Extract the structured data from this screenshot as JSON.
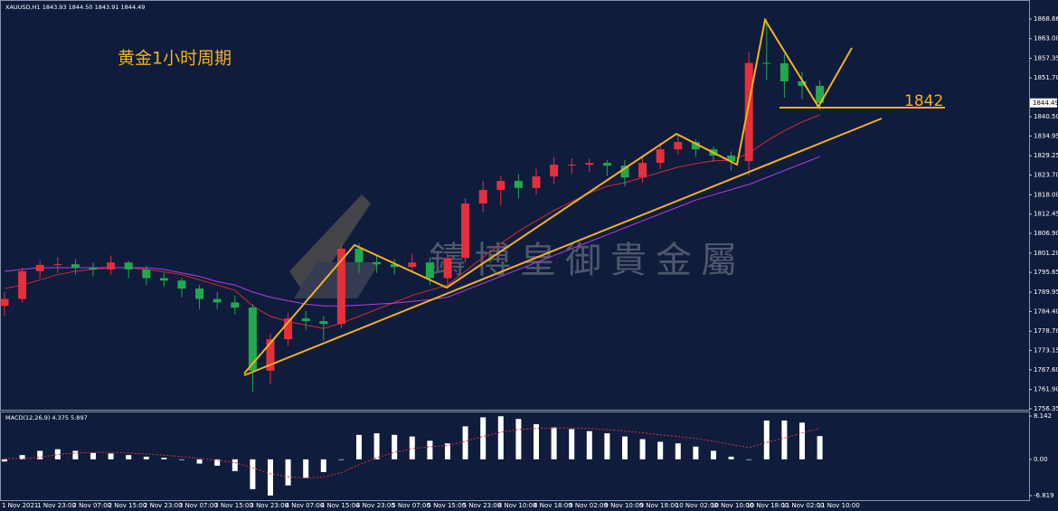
{
  "chart_data": [
    {
      "type": "candlestick",
      "title": "XAUUSD,H1  1843.93 1844.50 1843.91 1844.49",
      "categories": [
        "1 Nov 2021",
        null,
        "1 Nov 23:00",
        null,
        "2 Nov 07:00",
        null,
        "2 Nov 15:00",
        null,
        "2 Nov 23:00",
        null,
        "3 Nov 07:00",
        null,
        "3 Nov 15:00",
        null,
        "3 Nov 23:00",
        null,
        "4 Nov 07:00",
        null,
        "4 Nov 15:00",
        null,
        "4 Nov 23:00",
        null,
        "5 Nov 07:00",
        null,
        "5 Nov 15:00",
        null,
        "5 Nov 23:00",
        null,
        "8 Nov 10:00",
        null,
        "8 Nov 18:00",
        null,
        "9 Nov 02:00",
        null,
        "9 Nov 10:00",
        null,
        "9 Nov 18:00",
        null,
        "10 Nov 02:00",
        null,
        "10 Nov 10:00",
        null,
        "10 Nov 18:00",
        null,
        "11 Nov 02:00",
        null,
        "11 Nov 10:00"
      ],
      "open": [
        1786,
        1788,
        1796,
        1797.8,
        1798,
        1797,
        1796.5,
        1798.5,
        1796.5,
        1794,
        1793.3,
        1791,
        1788,
        1787,
        1785.5,
        1767.3,
        1776.4,
        1782.4,
        1781.6,
        1780.8,
        1802.5,
        1798.6,
        1798,
        1797.2,
        1798.5,
        1794,
        1799.8,
        1815.5,
        1819.4,
        1822,
        1820,
        1823.3,
        1826.7,
        1826.7,
        1827.2,
        1826.4,
        1823,
        1827.2,
        1831.1,
        1833.2,
        1831.1,
        1829.3,
        1827.7,
        1856,
        1855.9,
        1850.7,
        1849.4
      ],
      "high": [
        1790,
        1797,
        1799,
        1800,
        1799.5,
        1798.5,
        1800.5,
        1799,
        1797.5,
        1795.5,
        1794,
        1792,
        1790,
        1789,
        1786.5,
        1778,
        1784,
        1784.5,
        1783,
        1803.5,
        1804,
        1800.5,
        1799.5,
        1801,
        1800,
        1801,
        1817,
        1822,
        1823.5,
        1824,
        1825.5,
        1829,
        1828.5,
        1828.5,
        1828,
        1828,
        1829,
        1833,
        1835,
        1834,
        1832,
        1830.5,
        1859,
        1868.7,
        1858.5,
        1853.5,
        1851
      ],
      "low": [
        1783,
        1787,
        1794,
        1795.5,
        1795,
        1794.5,
        1795,
        1794,
        1792,
        1791.5,
        1788.5,
        1785,
        1785,
        1783.5,
        1761.2,
        1763.5,
        1774.5,
        1779,
        1776,
        1779.5,
        1795.5,
        1795.5,
        1795,
        1795.5,
        1792,
        1792,
        1798.5,
        1813,
        1815,
        1817,
        1818,
        1821,
        1824,
        1824.5,
        1823.5,
        1820.5,
        1821.5,
        1825.5,
        1829.5,
        1829,
        1827.5,
        1825,
        1823.5,
        1851,
        1846,
        1845.5,
        1842.5
      ],
      "close": [
        1788,
        1796,
        1797.8,
        1798,
        1797,
        1796.5,
        1798.5,
        1796.5,
        1794,
        1793.3,
        1791,
        1788,
        1787,
        1785.5,
        1767.3,
        1776.4,
        1782.4,
        1781.6,
        1780.8,
        1802.5,
        1798.6,
        1798,
        1797.2,
        1798.5,
        1794,
        1799.8,
        1815.5,
        1819.4,
        1822,
        1820,
        1823.3,
        1826.7,
        1826.7,
        1827.2,
        1826.4,
        1823,
        1827.2,
        1831.1,
        1833.2,
        1831.1,
        1829.3,
        1827.7,
        1856,
        1855.9,
        1850.7,
        1849.4,
        1844.49
      ],
      "up_color": "#e5303b",
      "down_color": "#22a94d",
      "lines": [
        {
          "color": "#d42a34",
          "values": [
            1791,
            1792,
            1793.5,
            1795,
            1796,
            1796.5,
            1797,
            1797,
            1796.5,
            1795.8,
            1795,
            1793.5,
            1792,
            1790.5,
            1786,
            1783,
            1781.5,
            1780.5,
            1779.5,
            1781,
            1783,
            1785,
            1787,
            1789,
            1790.5,
            1792,
            1796,
            1800,
            1804,
            1807.5,
            1810.5,
            1813.5,
            1816,
            1818.5,
            1820.5,
            1821.5,
            1823,
            1824.5,
            1826,
            1827,
            1827.8,
            1828,
            1830,
            1833.5,
            1836.5,
            1839,
            1841
          ]
        },
        {
          "color": "#b23fe0",
          "values": [
            1796,
            1796.5,
            1797,
            1797,
            1797,
            1797,
            1797,
            1797,
            1797,
            1796.5,
            1795.5,
            1794.5,
            1793,
            1792,
            1790,
            1788.5,
            1787.5,
            1786.5,
            1786,
            1786,
            1786.2,
            1786.5,
            1786.8,
            1787.3,
            1787.8,
            1788.5,
            1790.5,
            1792.5,
            1794.5,
            1796.5,
            1798.5,
            1800.5,
            1802.5,
            1804.5,
            1806.5,
            1808.5,
            1810.5,
            1812.5,
            1814.5,
            1816.5,
            1818,
            1819.5,
            1821,
            1823,
            1825,
            1827,
            1829
          ]
        }
      ],
      "ylim": [
        1756.09,
        1872.05
      ],
      "yticks": [
        1868.66,
        {
          "value": 1863,
          "label": "1863.00"
        },
        1857.35,
        {
          "value": 1851.7,
          "label": "1851.70"
        },
        {
          "value": 1840.5,
          "label": "1840.50"
        },
        1834.95,
        1829.25,
        {
          "value": 1823.7,
          "label": "1823.70"
        },
        {
          "value": 1818,
          "label": "1818.00"
        },
        1812.45,
        {
          "value": 1806.9,
          "label": "1806.90"
        },
        {
          "value": 1801.2,
          "label": "1801.20"
        },
        1795.65,
        1789.95,
        {
          "value": 1784.4,
          "label": "1784.40"
        },
        {
          "value": 1778.7,
          "label": "1778.70"
        },
        1773.15,
        {
          "value": 1767.6,
          "label": "1767.60"
        },
        {
          "value": 1761.9,
          "label": "1761.90"
        },
        1756.35
      ],
      "current_price": 1844.49,
      "annotation": "黄金1小时周期",
      "level_label": "1842",
      "watermark": "鑄博皇御貴金屬"
    },
    {
      "type": "macd",
      "title": "MACD(12,26,9) 4.375 5.897",
      "color": "#ffffff",
      "values": [
        -0.4,
        0.8,
        1.6,
        1.9,
        1.6,
        1.2,
        1.1,
        0.8,
        0.5,
        0.3,
        -0.1,
        -0.8,
        -1.2,
        -2.2,
        -5.6,
        -6.8,
        -4.9,
        -3.5,
        -2.4,
        -0.1,
        4.6,
        4.9,
        4.6,
        4.3,
        3.5,
        3.0,
        6.2,
        7.9,
        8.1,
        7.6,
        6.6,
        6.0,
        5.7,
        5.3,
        4.9,
        4.3,
        3.8,
        3.3,
        3.0,
        2.4,
        1.6,
        0.5,
        -0.1,
        7.3,
        7.3,
        6.9,
        4.375
      ],
      "signal": {
        "color": "#e0303a",
        "values": [
          0.2,
          0.1,
          0.4,
          0.9,
          1.2,
          1.3,
          1.3,
          1.2,
          1.0,
          0.8,
          0.5,
          0.2,
          -0.2,
          -0.6,
          -1.6,
          -2.7,
          -3.3,
          -3.5,
          -3.3,
          -2.5,
          -1.0,
          0.3,
          1.3,
          2.0,
          2.4,
          2.6,
          3.4,
          4.3,
          5.1,
          5.6,
          5.8,
          5.9,
          5.9,
          5.8,
          5.6,
          5.3,
          5.0,
          4.6,
          4.3,
          3.9,
          3.4,
          2.8,
          2.2,
          3.2,
          4.0,
          5.0,
          5.897
        ]
      },
      "ylim": [
        -6.819,
        8.142
      ],
      "yticks": [
        8.142,
        {
          "value": 0,
          "label": "0.00"
        },
        -6.819
      ]
    }
  ]
}
